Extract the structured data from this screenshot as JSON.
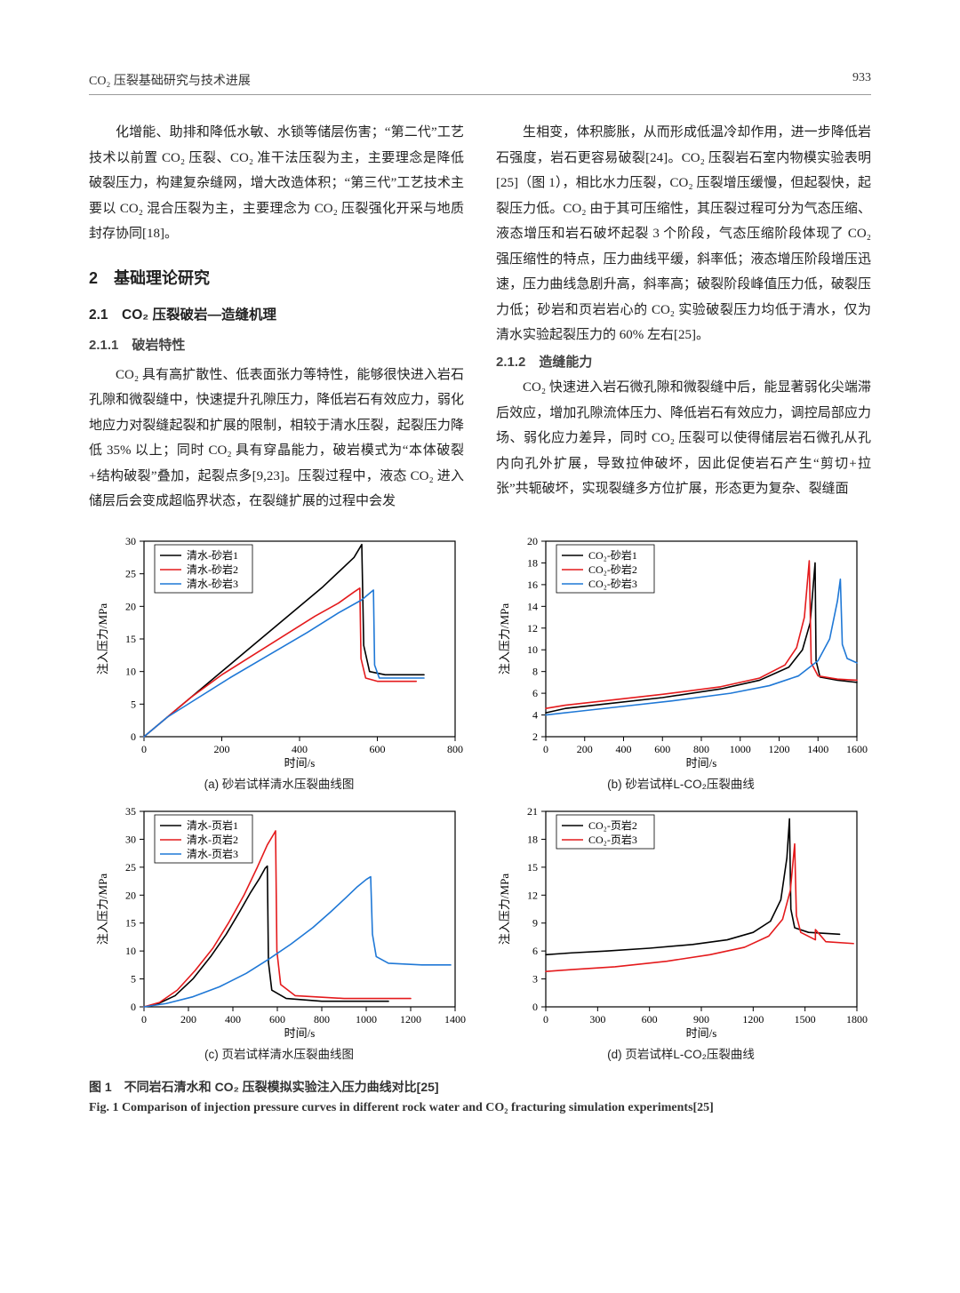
{
  "header": {
    "left": "CO₂ 压裂基础研究与技术进展",
    "page": "933"
  },
  "text": {
    "p1": "化增能、助排和降低水敏、水锁等储层伤害；“第二代”工艺技术以前置 CO₂ 压裂、CO₂ 准干法压裂为主，主要理念是降低破裂压力，构建复杂缝网，增大改造体积；“第三代”工艺技术主要以 CO₂ 混合压裂为主，主要理念为 CO₂ 压裂强化开采与地质封存协同[18]。",
    "h2": "2　基础理论研究",
    "h3": "2.1　CO₂ 压裂破岩—造缝机理",
    "h4a": "2.1.1　破岩特性",
    "p2": "CO₂ 具有高扩散性、低表面张力等特性，能够很快进入岩石孔隙和微裂缝中，快速提升孔隙压力，降低岩石有效应力，弱化地应力对裂缝起裂和扩展的限制，相较于清水压裂，起裂压力降低 35% 以上；同时 CO₂ 具有穿晶能力，破岩模式为“本体破裂+结构破裂”叠加，起裂点多[9,23]。压裂过程中，液态 CO₂ 进入储层后会变成超临界状态，在裂缝扩展的过程中会发",
    "p3": "生相变，体积膨胀，从而形成低温冷却作用，进一步降低岩石强度，岩石更容易破裂[24]。CO₂ 压裂岩石室内物模实验表明[25]（图 1），相比水力压裂，CO₂ 压裂增压缓慢，但起裂快，起裂压力低。CO₂ 由于其可压缩性，其压裂过程可分为气态压缩、液态增压和岩石破坏起裂 3 个阶段，气态压缩阶段体现了 CO₂ 强压缩性的特点，压力曲线平缓，斜率低；液态增压阶段增压迅速，压力曲线急剧升高，斜率高；破裂阶段峰值压力低，破裂压力低；砂岩和页岩岩心的 CO₂ 实验破裂压力均低于清水，仅为清水实验起裂压力的 60% 左右[25]。",
    "h4b": "2.1.2　造缝能力",
    "p4": "CO₂ 快速进入岩石微孔隙和微裂缝中后，能显著弱化尖端滞后效应，增加孔隙流体压力、降低岩石有效应力，调控局部应力场、弱化应力差异，同时 CO₂ 压裂可以使得储层岩石微孔从孔内向孔外扩展，导致拉伸破坏，因此促使岩石产生“剪切+拉张”共轭破坏，实现裂缝多方位扩展，形态更为复杂、裂缝面"
  },
  "figure": {
    "caption_cn": "图 1　不同岩石清水和 CO₂ 压裂模拟实验注入压力曲线对比[25]",
    "caption_en": "Fig. 1   Comparison of injection pressure curves in different rock water and CO₂ fracturing simulation experiments[25]",
    "style": {
      "axis_color": "#000000",
      "grid_color": "none",
      "tick_fontsize": 12,
      "label_fontsize": 13,
      "legend_fontsize": 12,
      "line_width": 1.6,
      "colors": {
        "black": "#000000",
        "red": "#e41a1c",
        "blue": "#1f78d6"
      }
    },
    "panels": {
      "a": {
        "subcaption": "(a) 砂岩试样清水压裂曲线图",
        "xlabel": "时间/s",
        "ylabel": "注入压力/MPa",
        "xlim": [
          0,
          800
        ],
        "xticks": [
          0,
          200,
          400,
          600,
          800
        ],
        "ylim": [
          0,
          30
        ],
        "yticks": [
          0,
          5,
          10,
          15,
          20,
          25,
          30
        ],
        "legend": [
          "清水-砂岩1",
          "清水-砂岩2",
          "清水-砂岩3"
        ],
        "legend_colors": [
          "black",
          "red",
          "blue"
        ],
        "series": [
          {
            "color": "black",
            "pts": [
              [
                0,
                0
              ],
              [
                80,
                4
              ],
              [
                160,
                8
              ],
              [
                260,
                13
              ],
              [
                360,
                18
              ],
              [
                460,
                23
              ],
              [
                540,
                27.5
              ],
              [
                560,
                29.5
              ],
              [
                565,
                14
              ],
              [
                580,
                10
              ],
              [
                620,
                9.5
              ],
              [
                720,
                9.5
              ]
            ]
          },
          {
            "color": "red",
            "pts": [
              [
                0,
                0
              ],
              [
                60,
                3
              ],
              [
                120,
                6
              ],
              [
                200,
                9.5
              ],
              [
                280,
                12.5
              ],
              [
                360,
                15.5
              ],
              [
                440,
                18.5
              ],
              [
                500,
                20.5
              ],
              [
                540,
                22.2
              ],
              [
                555,
                22.8
              ],
              [
                558,
                12
              ],
              [
                570,
                9
              ],
              [
                600,
                8.5
              ],
              [
                700,
                8.5
              ]
            ]
          },
          {
            "color": "blue",
            "pts": [
              [
                0,
                0
              ],
              [
                60,
                3
              ],
              [
                140,
                6
              ],
              [
                220,
                9
              ],
              [
                320,
                12.5
              ],
              [
                420,
                16
              ],
              [
                500,
                19
              ],
              [
                560,
                21
              ],
              [
                580,
                22
              ],
              [
                590,
                22.5
              ],
              [
                593,
                11
              ],
              [
                605,
                9
              ],
              [
                640,
                9
              ],
              [
                720,
                9
              ]
            ]
          }
        ]
      },
      "b": {
        "subcaption": "(b) 砂岩试样L-CO₂压裂曲线",
        "xlabel": "时间/s",
        "ylabel": "注入压力/MPa",
        "xlim": [
          0,
          1600
        ],
        "xticks": [
          0,
          200,
          400,
          600,
          800,
          1000,
          1200,
          1400,
          1600
        ],
        "ylim": [
          2,
          20
        ],
        "yticks": [
          2,
          4,
          6,
          8,
          10,
          12,
          14,
          16,
          18,
          20
        ],
        "legend": [
          "CO₂-砂岩1",
          "CO₂-砂岩2",
          "CO₂-砂岩3"
        ],
        "legend_colors": [
          "black",
          "red",
          "blue"
        ],
        "series": [
          {
            "color": "black",
            "pts": [
              [
                0,
                4.2
              ],
              [
                100,
                4.6
              ],
              [
                300,
                5.0
              ],
              [
                600,
                5.6
              ],
              [
                900,
                6.4
              ],
              [
                1100,
                7.2
              ],
              [
                1250,
                8.4
              ],
              [
                1320,
                10.0
              ],
              [
                1360,
                12.5
              ],
              [
                1385,
                18.0
              ],
              [
                1390,
                9.0
              ],
              [
                1410,
                7.5
              ],
              [
                1500,
                7.2
              ],
              [
                1600,
                7.0
              ]
            ]
          },
          {
            "color": "red",
            "pts": [
              [
                0,
                4.6
              ],
              [
                100,
                4.9
              ],
              [
                300,
                5.3
              ],
              [
                600,
                5.9
              ],
              [
                900,
                6.6
              ],
              [
                1100,
                7.4
              ],
              [
                1230,
                8.6
              ],
              [
                1290,
                10.2
              ],
              [
                1330,
                13.0
              ],
              [
                1355,
                18.2
              ],
              [
                1365,
                8.8
              ],
              [
                1400,
                7.6
              ],
              [
                1500,
                7.3
              ],
              [
                1600,
                7.2
              ]
            ]
          },
          {
            "color": "blue",
            "pts": [
              [
                0,
                4.0
              ],
              [
                150,
                4.3
              ],
              [
                350,
                4.7
              ],
              [
                650,
                5.3
              ],
              [
                950,
                6.0
              ],
              [
                1150,
                6.7
              ],
              [
                1300,
                7.6
              ],
              [
                1400,
                9.0
              ],
              [
                1460,
                11.0
              ],
              [
                1500,
                14.5
              ],
              [
                1515,
                16.5
              ],
              [
                1525,
                10.5
              ],
              [
                1550,
                9.2
              ],
              [
                1600,
                8.8
              ]
            ]
          }
        ]
      },
      "c": {
        "subcaption": "(c) 页岩试样清水压裂曲线图",
        "xlabel": "时间/s",
        "ylabel": "注入压力/MPa",
        "xlim": [
          0,
          1400
        ],
        "xticks": [
          0,
          200,
          400,
          600,
          800,
          1000,
          1200,
          1400
        ],
        "ylim": [
          0,
          35
        ],
        "yticks": [
          0,
          5,
          10,
          15,
          20,
          25,
          30,
          35
        ],
        "legend": [
          "清水-页岩1",
          "清水-页岩2",
          "清水-页岩3"
        ],
        "legend_colors": [
          "black",
          "red",
          "blue"
        ],
        "series": [
          {
            "color": "black",
            "pts": [
              [
                0,
                0
              ],
              [
                60,
                0.5
              ],
              [
                140,
                2
              ],
              [
                220,
                5
              ],
              [
                300,
                9
              ],
              [
                370,
                13
              ],
              [
                430,
                17
              ],
              [
                480,
                20.5
              ],
              [
                520,
                23
              ],
              [
                545,
                24.8
              ],
              [
                555,
                25.2
              ],
              [
                560,
                8
              ],
              [
                575,
                3
              ],
              [
                640,
                1.5
              ],
              [
                800,
                1
              ],
              [
                1100,
                1
              ]
            ]
          },
          {
            "color": "red",
            "pts": [
              [
                0,
                0
              ],
              [
                70,
                0.8
              ],
              [
                150,
                3
              ],
              [
                230,
                6.5
              ],
              [
                310,
                10.5
              ],
              [
                380,
                15
              ],
              [
                450,
                20
              ],
              [
                510,
                25
              ],
              [
                555,
                29
              ],
              [
                585,
                31
              ],
              [
                592,
                31.5
              ],
              [
                598,
                10
              ],
              [
                615,
                4
              ],
              [
                680,
                2
              ],
              [
                900,
                1.5
              ],
              [
                1200,
                1.5
              ]
            ]
          },
          {
            "color": "blue",
            "pts": [
              [
                0,
                0
              ],
              [
                100,
                0.6
              ],
              [
                220,
                1.8
              ],
              [
                340,
                3.6
              ],
              [
                460,
                6.0
              ],
              [
                560,
                8.5
              ],
              [
                660,
                11.2
              ],
              [
                760,
                14.2
              ],
              [
                840,
                17
              ],
              [
                910,
                19.6
              ],
              [
                960,
                21.5
              ],
              [
                1000,
                22.8
              ],
              [
                1020,
                23.3
              ],
              [
                1028,
                13
              ],
              [
                1045,
                9
              ],
              [
                1100,
                7.8
              ],
              [
                1250,
                7.5
              ],
              [
                1380,
                7.5
              ]
            ]
          }
        ]
      },
      "d": {
        "subcaption": "(d) 页岩试样L-CO₂压裂曲线",
        "xlabel": "时间/s",
        "ylabel": "注入压力/MPa",
        "xlim": [
          0,
          1800
        ],
        "xticks": [
          0,
          300,
          600,
          900,
          1200,
          1500,
          1800
        ],
        "ylim": [
          0,
          21
        ],
        "yticks": [
          0,
          3,
          6,
          9,
          12,
          15,
          18,
          21
        ],
        "legend": [
          "CO₂-页岩2",
          "CO₂-页岩3"
        ],
        "legend_colors": [
          "black",
          "red"
        ],
        "series": [
          {
            "color": "black",
            "pts": [
              [
                0,
                5.6
              ],
              [
                150,
                5.8
              ],
              [
                350,
                6.0
              ],
              [
                600,
                6.3
              ],
              [
                850,
                6.7
              ],
              [
                1050,
                7.2
              ],
              [
                1200,
                8.0
              ],
              [
                1300,
                9.2
              ],
              [
                1360,
                11.5
              ],
              [
                1395,
                16.0
              ],
              [
                1410,
                20.2
              ],
              [
                1418,
                10.5
              ],
              [
                1440,
                8.5
              ],
              [
                1520,
                8.0
              ],
              [
                1700,
                7.8
              ]
            ]
          },
          {
            "color": "red",
            "pts": [
              [
                0,
                3.8
              ],
              [
                150,
                4.0
              ],
              [
                400,
                4.3
              ],
              [
                700,
                4.9
              ],
              [
                950,
                5.6
              ],
              [
                1150,
                6.4
              ],
              [
                1290,
                7.6
              ],
              [
                1370,
                9.4
              ],
              [
                1415,
                12.5
              ],
              [
                1440,
                17.5
              ],
              [
                1450,
                9.8
              ],
              [
                1475,
                8.0
              ],
              [
                1560,
                7.2
              ],
              [
                1560,
                8.3
              ],
              [
                1620,
                7.0
              ],
              [
                1780,
                6.8
              ]
            ]
          }
        ]
      }
    }
  }
}
